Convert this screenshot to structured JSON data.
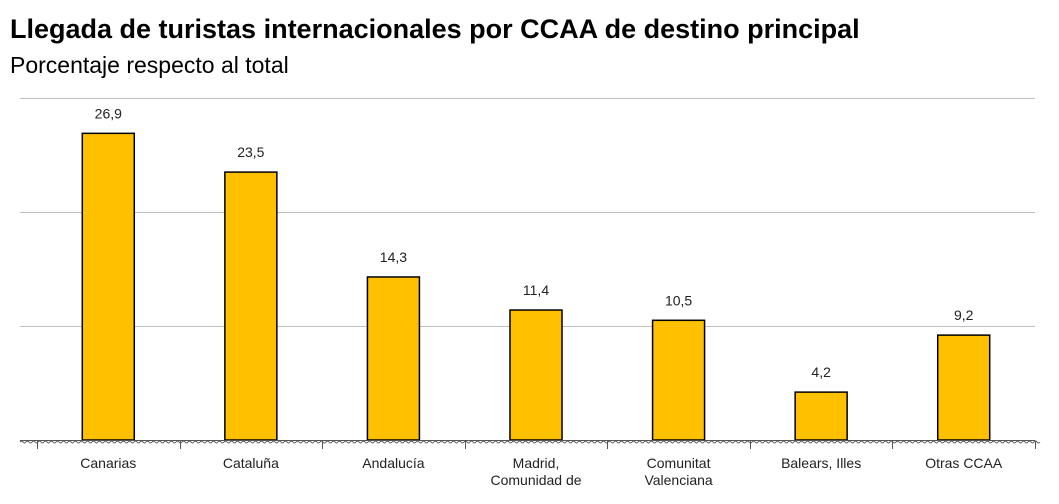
{
  "chart_data": {
    "type": "bar",
    "title": "Llegada de turistas internacionales por CCAA de destino principal",
    "subtitle": "Porcentaje respecto al total",
    "categories": [
      [
        "Canarias"
      ],
      [
        "Cataluña"
      ],
      [
        "Andalucía"
      ],
      [
        "Madrid,",
        "Comunidad de"
      ],
      [
        "Comunitat",
        "Valenciana"
      ],
      [
        "Balears, Illes"
      ],
      [
        "Otras CCAA"
      ]
    ],
    "values": [
      26.9,
      23.5,
      14.3,
      11.4,
      10.5,
      4.2,
      9.2
    ],
    "data_labels": [
      "26,9",
      "23,5",
      "14,3",
      "11,4",
      "10,5",
      "4,2",
      "9,2"
    ],
    "ylim": [
      0,
      30
    ],
    "gridlines": [
      0,
      10,
      20,
      30
    ],
    "grid": true,
    "legend": "none",
    "colors": {
      "bar_fill": "#FFC000",
      "bar_stroke": "#000000",
      "grid": "#BFBFBF"
    }
  }
}
